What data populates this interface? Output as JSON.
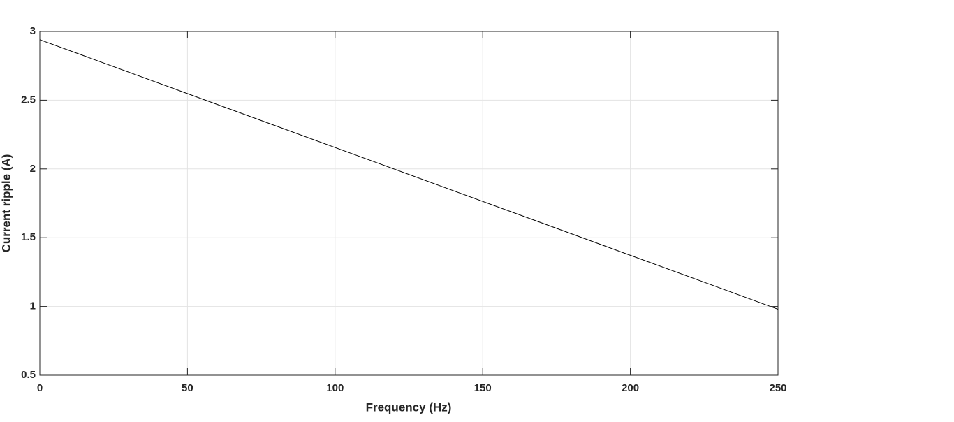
{
  "chart_data": {
    "type": "line",
    "x": [
      0,
      250
    ],
    "values": [
      2.94,
      0.98
    ],
    "color": "#000000",
    "xlabel": "Frequency (Hz)",
    "ylabel": "Current ripple (A)",
    "xlim": [
      0,
      250
    ],
    "xticks": [
      0,
      50,
      100,
      150,
      200,
      250
    ],
    "ylim": [
      0.5,
      3
    ],
    "yticks": [
      0.5,
      1,
      1.5,
      2,
      2.5,
      3
    ],
    "grid": true
  }
}
